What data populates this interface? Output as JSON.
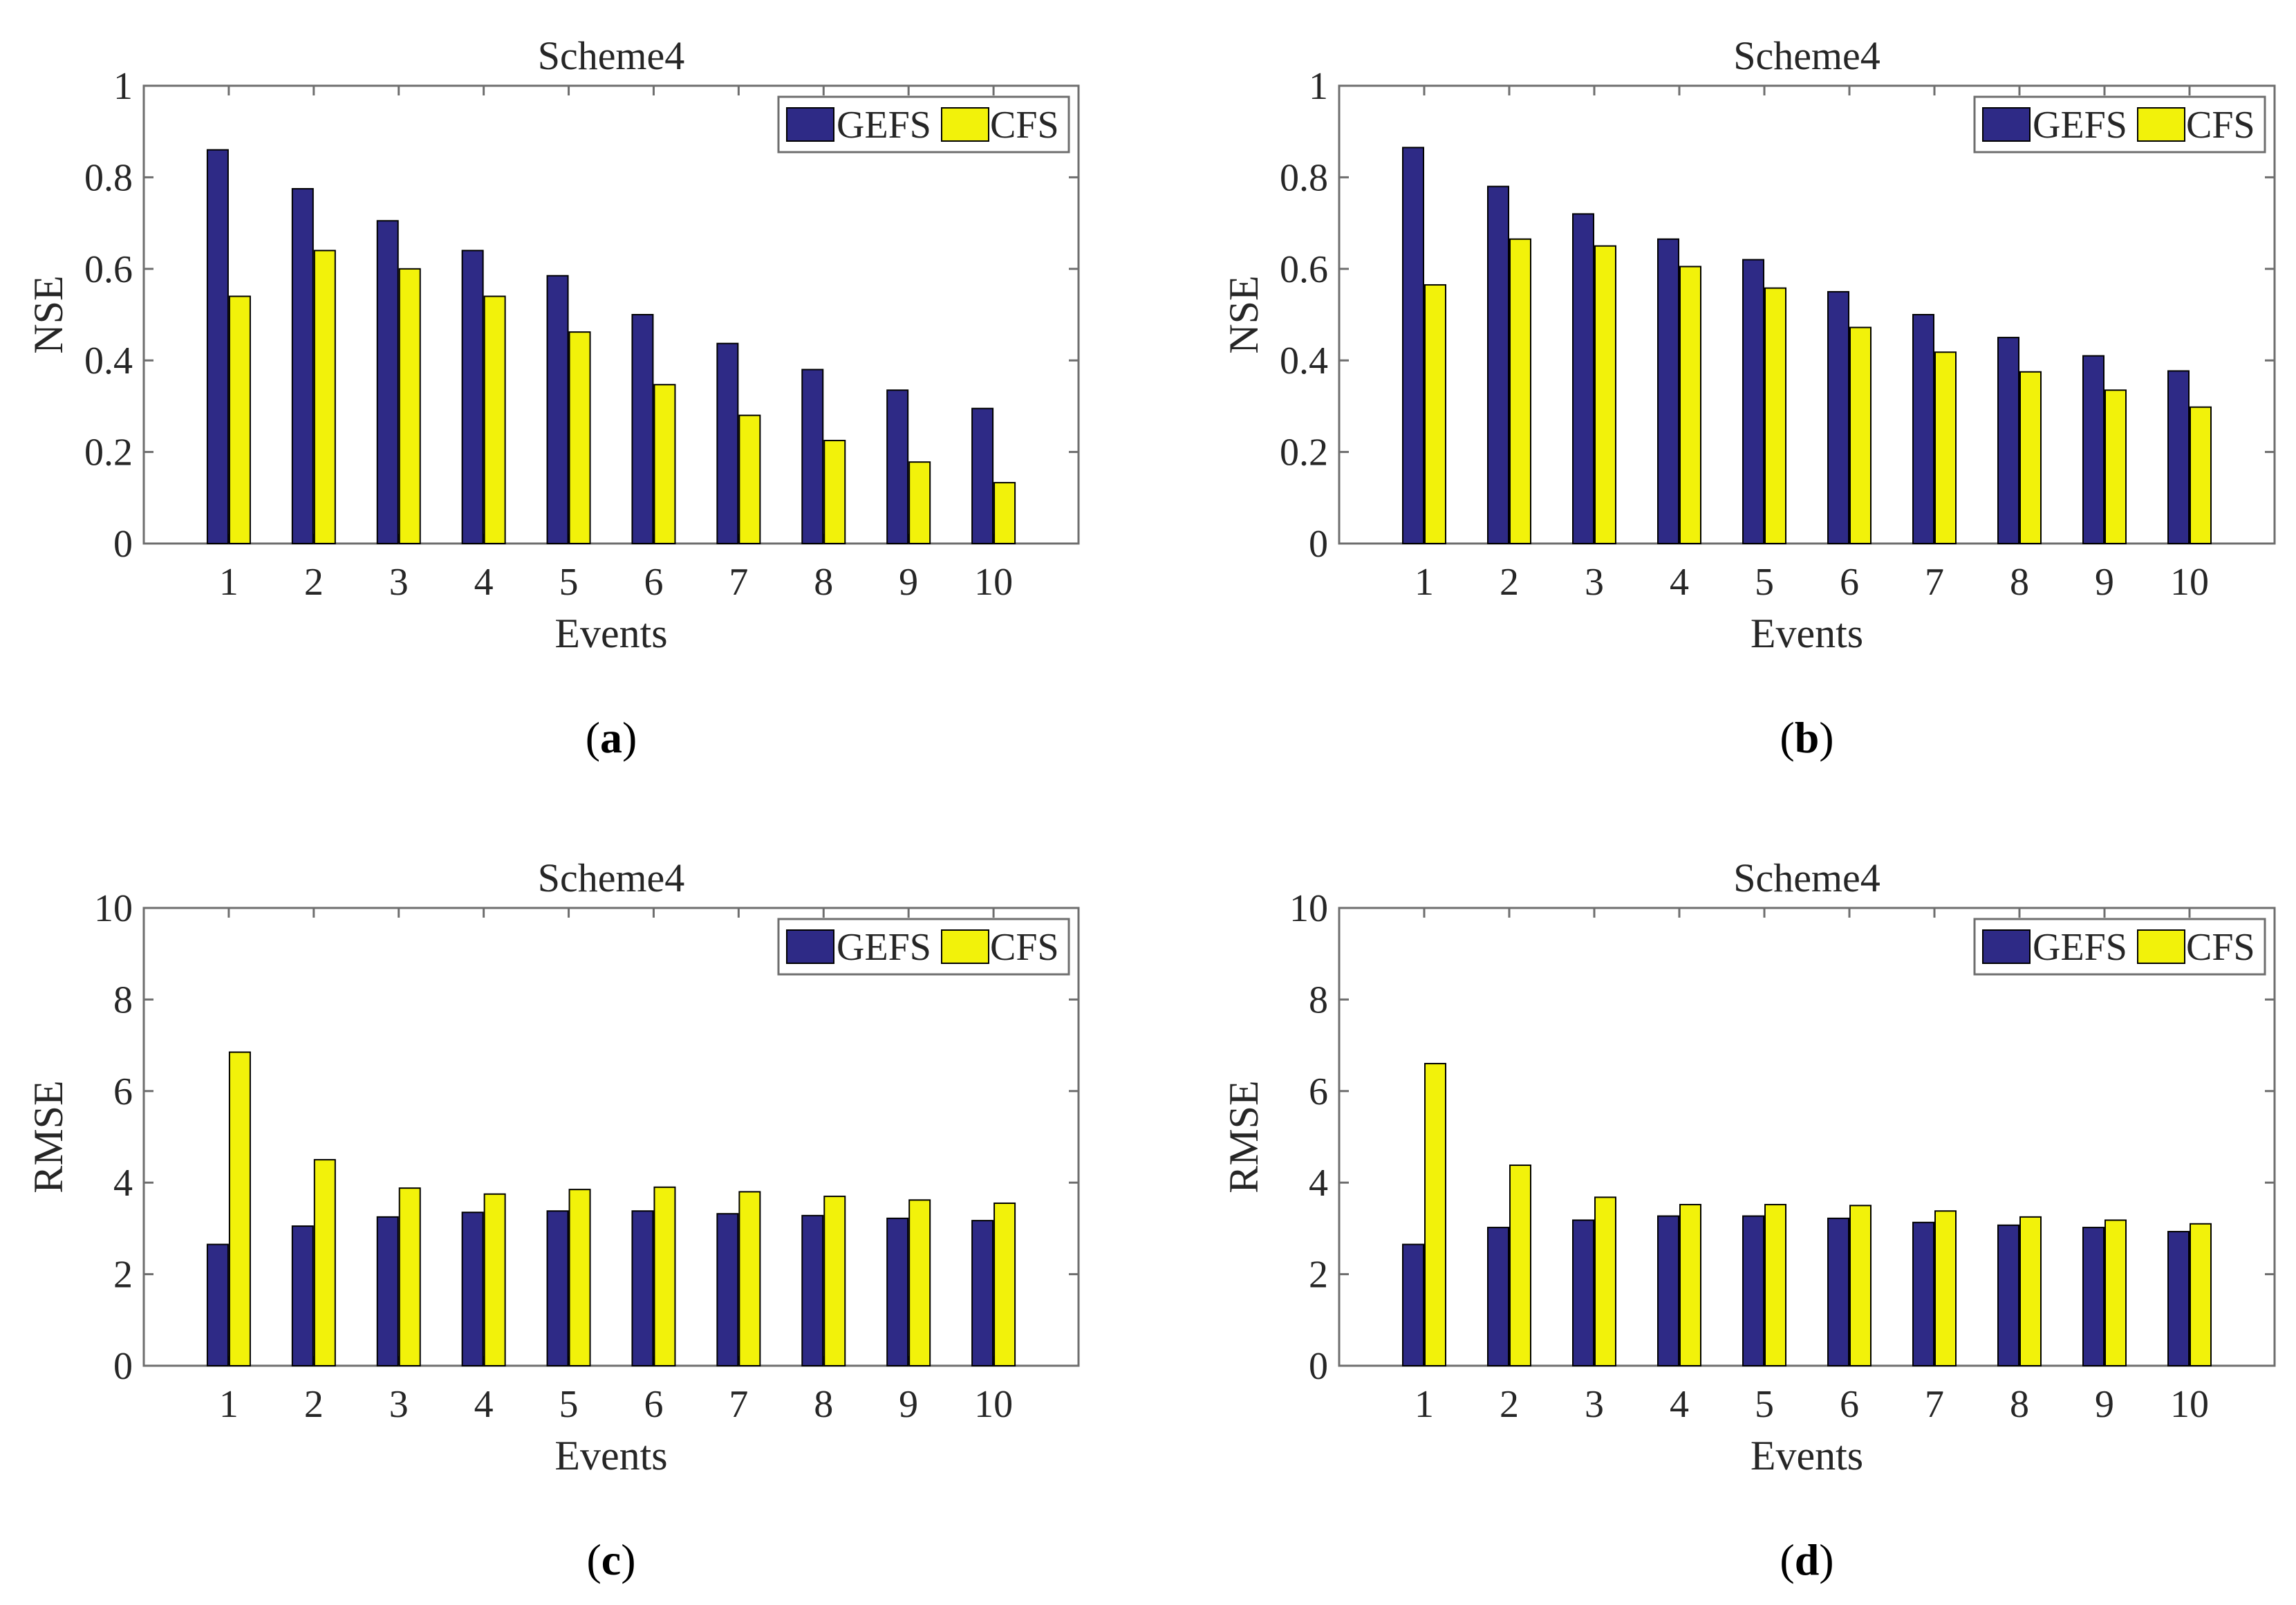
{
  "colors": {
    "gefs": "#2e2a86",
    "cfs": "#f2f20a"
  },
  "chart_data": [
    {
      "id": "a",
      "type": "bar",
      "title": "Scheme4",
      "xlabel": "Events",
      "ylabel": "NSE",
      "caption": {
        "open": "(",
        "letter": "a",
        "close": ")"
      },
      "categories": [
        "1",
        "2",
        "3",
        "4",
        "5",
        "6",
        "7",
        "8",
        "9",
        "10"
      ],
      "ylim": [
        0,
        1
      ],
      "yticks": [
        0,
        0.2,
        0.4,
        0.6,
        0.8,
        1
      ],
      "ytick_labels": [
        "0",
        "0.2",
        "0.4",
        "0.6",
        "0.8",
        "1"
      ],
      "legend": [
        "GEFS",
        "CFS"
      ],
      "series": [
        {
          "name": "GEFS",
          "values": [
            0.86,
            0.775,
            0.705,
            0.64,
            0.585,
            0.5,
            0.437,
            0.38,
            0.335,
            0.295
          ]
        },
        {
          "name": "CFS",
          "values": [
            0.54,
            0.64,
            0.6,
            0.54,
            0.462,
            0.347,
            0.28,
            0.225,
            0.178,
            0.133
          ]
        }
      ]
    },
    {
      "id": "b",
      "type": "bar",
      "title": "Scheme4",
      "xlabel": "Events",
      "ylabel": "NSE",
      "caption": {
        "open": "(",
        "letter": "b",
        "close": ")"
      },
      "categories": [
        "1",
        "2",
        "3",
        "4",
        "5",
        "6",
        "7",
        "8",
        "9",
        "10"
      ],
      "ylim": [
        0,
        1
      ],
      "yticks": [
        0,
        0.2,
        0.4,
        0.6,
        0.8,
        1
      ],
      "ytick_labels": [
        "0",
        "0.2",
        "0.4",
        "0.6",
        "0.8",
        "1"
      ],
      "legend": [
        "GEFS",
        "CFS"
      ],
      "series": [
        {
          "name": "GEFS",
          "values": [
            0.865,
            0.78,
            0.72,
            0.665,
            0.62,
            0.55,
            0.5,
            0.45,
            0.41,
            0.377
          ]
        },
        {
          "name": "CFS",
          "values": [
            0.565,
            0.665,
            0.65,
            0.605,
            0.558,
            0.472,
            0.418,
            0.375,
            0.335,
            0.298
          ]
        }
      ]
    },
    {
      "id": "c",
      "type": "bar",
      "title": "Scheme4",
      "xlabel": "Events",
      "ylabel": "RMSE",
      "caption": {
        "open": "(",
        "letter": "c",
        "close": ")"
      },
      "categories": [
        "1",
        "2",
        "3",
        "4",
        "5",
        "6",
        "7",
        "8",
        "9",
        "10"
      ],
      "ylim": [
        0,
        10
      ],
      "yticks": [
        0,
        2,
        4,
        6,
        8,
        10
      ],
      "ytick_labels": [
        "0",
        "2",
        "4",
        "6",
        "8",
        "10"
      ],
      "legend": [
        "GEFS",
        "CFS"
      ],
      "series": [
        {
          "name": "GEFS",
          "values": [
            2.65,
            3.05,
            3.25,
            3.35,
            3.38,
            3.38,
            3.32,
            3.28,
            3.22,
            3.17
          ]
        },
        {
          "name": "CFS",
          "values": [
            6.85,
            4.5,
            3.88,
            3.75,
            3.85,
            3.9,
            3.8,
            3.7,
            3.62,
            3.55
          ]
        }
      ]
    },
    {
      "id": "d",
      "type": "bar",
      "title": "Scheme4",
      "xlabel": "Events",
      "ylabel": "RMSE",
      "caption": {
        "open": "(",
        "letter": "d",
        "close": ")"
      },
      "categories": [
        "1",
        "2",
        "3",
        "4",
        "5",
        "6",
        "7",
        "8",
        "9",
        "10"
      ],
      "ylim": [
        0,
        10
      ],
      "yticks": [
        0,
        2,
        4,
        6,
        8,
        10
      ],
      "ytick_labels": [
        "0",
        "2",
        "4",
        "6",
        "8",
        "10"
      ],
      "legend": [
        "GEFS",
        "CFS"
      ],
      "series": [
        {
          "name": "GEFS",
          "values": [
            2.65,
            3.02,
            3.18,
            3.27,
            3.27,
            3.22,
            3.13,
            3.07,
            3.02,
            2.93
          ]
        },
        {
          "name": "CFS",
          "values": [
            6.6,
            4.38,
            3.68,
            3.52,
            3.52,
            3.5,
            3.38,
            3.25,
            3.18,
            3.1
          ]
        }
      ]
    }
  ]
}
